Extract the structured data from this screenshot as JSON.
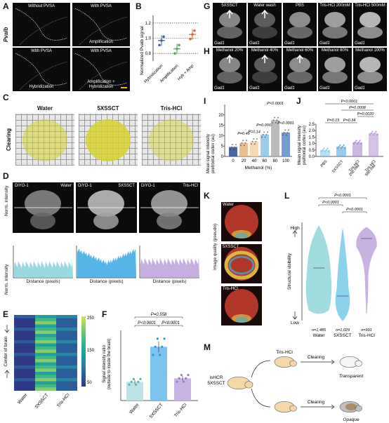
{
  "panels": {
    "A": {
      "label": "A",
      "side_label": "Pvalb",
      "tiles": [
        "Without PVSA",
        "With PVSA",
        "With PVSA",
        "With PVSA"
      ],
      "captions": [
        "",
        "Amplification",
        "Hybridization",
        "Amplification +\nHybridization"
      ]
    },
    "B": {
      "label": "B",
      "ylabel": "Normalized Pvalb signal",
      "ticks": [
        "0.8",
        "1.0",
        "1.2"
      ],
      "cats": [
        "Hybridization",
        "Amplification",
        "Hyb + Amp"
      ]
    },
    "C": {
      "label": "C",
      "side_label": "Clearing",
      "titles": [
        "Water",
        "5XSSCT",
        "Tris-HCl"
      ]
    },
    "D": {
      "label": "D",
      "tag": "DiYO-1",
      "titles": [
        "Water",
        "5XSSCT",
        "Tris-HCl"
      ],
      "ylabel": "Norm. intensity",
      "xlabel": "Distance (pixels)"
    },
    "E": {
      "label": "E",
      "ylabel": "Center of brain",
      "cats": [
        "Water",
        "5XSSCT",
        "Tris-HCl"
      ],
      "cbar": [
        "250",
        "150",
        "50"
      ]
    },
    "F": {
      "label": "F",
      "ylabel": "Signal intensity ratio\n(outside to inside the brain)",
      "cats": [
        "Water",
        "5XSSCT",
        "Tris-HCl"
      ],
      "pvals": [
        "P=0.558",
        "P<0.0001",
        "P<0.0001"
      ]
    },
    "G": {
      "label": "G",
      "titles": [
        "5XSSCT",
        "Water wash",
        "PBS",
        "Tris-HCl 200mM",
        "Tris-HCl 500mM"
      ],
      "gene": "Gad1"
    },
    "H": {
      "label": "H",
      "titles": [
        "Methanol 20%",
        "Methanol 40%",
        "Methanol 60%",
        "Methanol 80%",
        "Methanol 100%"
      ],
      "gene": "Gad1"
    },
    "I": {
      "label": "I",
      "ylabel": "Mean signal intensity\nprefrontal cortex (au)",
      "xlabel": "Methanol (%)",
      "cats": [
        "0",
        "20",
        "40",
        "60",
        "80",
        "100"
      ],
      "pvals": [
        "P=0.46",
        "P=0.14",
        "P=0.0002",
        "P<0.0001",
        "P<0.0001"
      ],
      "ticks": [
        "0",
        "5",
        "10",
        "15",
        "20"
      ]
    },
    "J": {
      "label": "J",
      "ylabel": "Mean signal intensity\nprefrontal cortex (au)",
      "cats": [
        "PBS",
        "5XSSCT",
        "Tris-HCl\n200 mM",
        "Tris-HCl\n500 mM"
      ],
      "pvals": [
        "P<0.0001",
        "P=0.0008",
        "P=0.0020",
        "P=0.15",
        "P=0.34"
      ],
      "ticks": [
        "0.0",
        "0.5",
        "1.0",
        "1.5",
        "2.0",
        "2.5"
      ]
    },
    "K": {
      "label": "K",
      "ylabel": "Image quality (pseudo)",
      "titles": [
        "Water",
        "5XSSCT",
        "Tris-HCl"
      ]
    },
    "L": {
      "label": "L",
      "ylabel": "Structural visibility",
      "high": "High",
      "low": "Low",
      "cats": [
        "Water",
        "5XSSCT",
        "Tris-HCl"
      ],
      "ns": [
        "n=1,485",
        "n=1,029",
        "n=991"
      ],
      "pvals": [
        "P<0.0001",
        "P<0.0001",
        "P<0.0001"
      ]
    },
    "M": {
      "label": "M",
      "start": "isHCR\n5XSSCT",
      "top": "Tris-HCl",
      "step": "Clearing",
      "out1": "Transparent",
      "out2": "Opaque"
    }
  },
  "chart_data": [
    {
      "type": "scatter",
      "panel": "B",
      "categories": [
        "Hybridization",
        "Amplification",
        "Hyb + Amp"
      ],
      "means": [
        0.97,
        0.86,
        1.05
      ],
      "ylim": [
        0.7,
        1.3
      ],
      "reference_lines": [
        0.8,
        1.0,
        1.2
      ]
    },
    {
      "type": "bar",
      "panel": "F",
      "categories": [
        "Water",
        "5XSSCT",
        "Tris-HCl"
      ],
      "values": [
        1.6,
        4.6,
        1.9
      ],
      "ylim": [
        0,
        6
      ]
    },
    {
      "type": "bar",
      "panel": "I",
      "categories": [
        "0",
        "20",
        "40",
        "60",
        "80",
        "100"
      ],
      "values": [
        4.5,
        6.5,
        7.2,
        10.5,
        17.5,
        11.5
      ],
      "ylim": [
        0,
        25
      ]
    },
    {
      "type": "bar",
      "panel": "J",
      "categories": [
        "PBS",
        "5XSSCT",
        "Tris-HCl 200 mM",
        "Tris-HCl 500 mM"
      ],
      "values": [
        0.5,
        0.75,
        1.1,
        1.8
      ],
      "ylim": [
        0,
        2.5
      ]
    },
    {
      "type": "violin",
      "panel": "L",
      "categories": [
        "Water",
        "5XSSCT",
        "Tris-HCl"
      ],
      "n": [
        1485,
        1029,
        991
      ]
    }
  ]
}
